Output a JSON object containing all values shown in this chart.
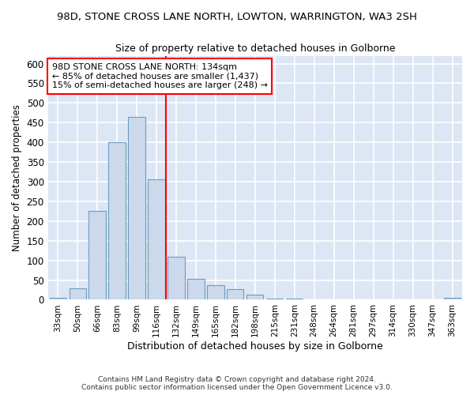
{
  "title_line1": "98D, STONE CROSS LANE NORTH, LOWTON, WARRINGTON, WA3 2SH",
  "title_line2": "Size of property relative to detached houses in Golborne",
  "xlabel": "Distribution of detached houses by size in Golborne",
  "ylabel": "Number of detached properties",
  "categories": [
    "33sqm",
    "50sqm",
    "66sqm",
    "83sqm",
    "99sqm",
    "116sqm",
    "132sqm",
    "149sqm",
    "165sqm",
    "182sqm",
    "198sqm",
    "215sqm",
    "231sqm",
    "248sqm",
    "264sqm",
    "281sqm",
    "297sqm",
    "314sqm",
    "330sqm",
    "347sqm",
    "363sqm"
  ],
  "values": [
    5,
    30,
    225,
    400,
    465,
    307,
    110,
    54,
    38,
    28,
    13,
    3,
    3,
    0,
    0,
    0,
    0,
    0,
    0,
    0,
    5
  ],
  "bar_color": "#ccd9ea",
  "bar_edge_color": "#6b9dc2",
  "vline_x": 6.0,
  "vline_color": "red",
  "annotation_text": "98D STONE CROSS LANE NORTH: 134sqm\n← 85% of detached houses are smaller (1,437)\n15% of semi-detached houses are larger (248) →",
  "annotation_box_color": "white",
  "annotation_box_edge_color": "red",
  "ylim": [
    0,
    620
  ],
  "yticks": [
    0,
    50,
    100,
    150,
    200,
    250,
    300,
    350,
    400,
    450,
    500,
    550,
    600
  ],
  "background_color": "#dce6f5",
  "grid_color": "white",
  "footer_line1": "Contains HM Land Registry data © Crown copyright and database right 2024.",
  "footer_line2": "Contains public sector information licensed under the Open Government Licence v3.0."
}
